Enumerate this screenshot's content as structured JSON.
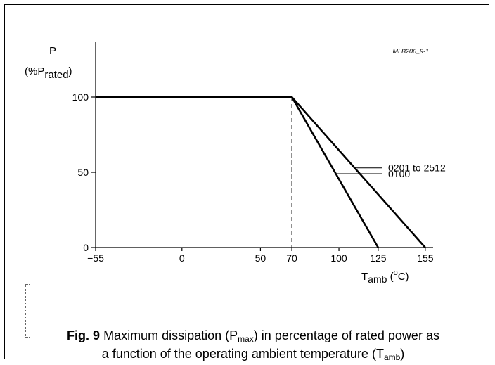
{
  "drawing_code": "MLB206_9-1",
  "chart_data": {
    "type": "line",
    "title": "",
    "ylabel": "P",
    "ylabel_unit_main": "(%P",
    "ylabel_unit_sub": "rated",
    "ylabel_unit_close": ")",
    "xlabel_main": "T",
    "xlabel_sub": "amb",
    "xlabel_unit_open": " (",
    "xlabel_unit_sup": "o",
    "xlabel_unit_rest": "C)",
    "xlim": [
      -55,
      160
    ],
    "ylim": [
      0,
      100
    ],
    "x_ticks": [
      -55,
      0,
      50,
      70,
      100,
      125,
      155
    ],
    "x_tick_labels": [
      "−55",
      "0",
      "50",
      "70",
      "100",
      "125",
      "155"
    ],
    "y_ticks": [
      0,
      50,
      100
    ],
    "y_tick_labels": [
      "0",
      "50",
      "100"
    ],
    "grid": false,
    "reference_line": {
      "x": 70,
      "style": "dashed"
    },
    "series": [
      {
        "name": "0201 to 2512",
        "points": [
          [
            -55,
            100
          ],
          [
            70,
            100
          ],
          [
            155,
            0
          ]
        ],
        "label_at_x": 110
      },
      {
        "name": "0100",
        "points": [
          [
            -55,
            100
          ],
          [
            70,
            100
          ],
          [
            125,
            0
          ]
        ],
        "label_at_x": 98
      }
    ]
  },
  "caption": {
    "fig_label": "Fig. 9",
    "part1": "  Maximum dissipation (P",
    "sub1": "max",
    "part2": ") in percentage of rated power as",
    "part3": "a function of the operating ambient temperature (T",
    "sub2": "amb",
    "part4": ")"
  }
}
